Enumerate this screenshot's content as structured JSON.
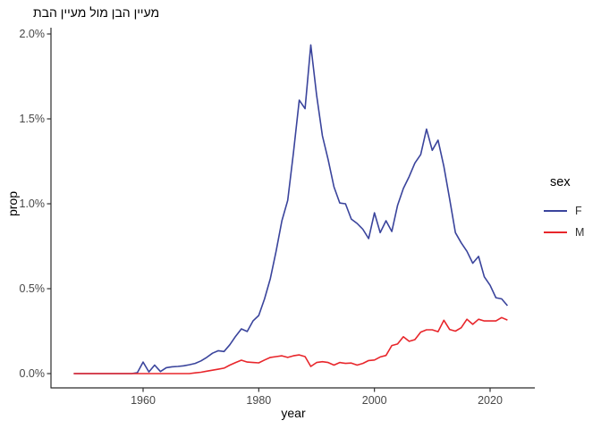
{
  "title": "תבה ןייעמ לומ ןבה ןייעמ",
  "axes": {
    "x_label": "year",
    "y_label": "prop",
    "x_ticks": [
      {
        "label": "1960",
        "value": 1960
      },
      {
        "label": "1980",
        "value": 1980
      },
      {
        "label": "2000",
        "value": 2000
      },
      {
        "label": "2020",
        "value": 2020
      }
    ],
    "y_ticks": [
      {
        "label": "0.0%",
        "value": 0.0
      },
      {
        "label": "0.5%",
        "value": 0.5
      },
      {
        "label": "1.0%",
        "value": 1.0
      },
      {
        "label": "1.5%",
        "value": 1.5
      },
      {
        "label": "2.0%",
        "value": 2.0
      }
    ]
  },
  "legend": {
    "title": "sex",
    "entries": [
      {
        "label": "F",
        "color": "#3A449C"
      },
      {
        "label": "M",
        "color": "#E8262B"
      }
    ]
  },
  "colors": {
    "axis_line": "#2b2b2b",
    "tick_mark": "#333333",
    "series_f": "#3A449C",
    "series_m": "#E8262B"
  },
  "chart_data": {
    "type": "line",
    "title": "תבה ןייעמ לומ ןבה ןייעמ",
    "xlabel": "year",
    "ylabel": "prop",
    "y_unit": "percent",
    "xlim": [
      1944.2,
      2027.5
    ],
    "ylim": [
      0,
      2.0
    ],
    "grid": false,
    "legend_position": "right",
    "x": [
      1948,
      1949,
      1950,
      1951,
      1952,
      1953,
      1954,
      1955,
      1956,
      1957,
      1958,
      1959,
      1960,
      1961,
      1962,
      1963,
      1964,
      1965,
      1966,
      1967,
      1968,
      1969,
      1970,
      1971,
      1972,
      1973,
      1974,
      1975,
      1976,
      1977,
      1978,
      1979,
      1980,
      1981,
      1982,
      1983,
      1984,
      1985,
      1986,
      1987,
      1988,
      1989,
      1990,
      1991,
      1992,
      1993,
      1994,
      1995,
      1996,
      1997,
      1998,
      1999,
      2000,
      2001,
      2002,
      2003,
      2004,
      2005,
      2006,
      2007,
      2008,
      2009,
      2010,
      2011,
      2012,
      2013,
      2014,
      2015,
      2016,
      2017,
      2018,
      2019,
      2020,
      2021,
      2022,
      2023
    ],
    "series": [
      {
        "name": "F",
        "color": "#3A449C",
        "values": [
          0,
          0,
          0,
          0,
          0,
          0,
          0,
          0,
          0,
          0,
          0,
          0.005,
          0.068,
          0.01,
          0.05,
          0.012,
          0.035,
          0.04,
          0.042,
          0.046,
          0.052,
          0.06,
          0.075,
          0.095,
          0.12,
          0.135,
          0.13,
          0.17,
          0.22,
          0.263,
          0.248,
          0.31,
          0.342,
          0.44,
          0.56,
          0.72,
          0.9,
          1.02,
          1.3,
          1.61,
          1.56,
          1.935,
          1.64,
          1.4,
          1.26,
          1.1,
          1.005,
          1.0,
          0.91,
          0.884,
          0.85,
          0.795,
          0.947,
          0.83,
          0.9,
          0.837,
          0.99,
          1.09,
          1.16,
          1.24,
          1.29,
          1.44,
          1.315,
          1.375,
          1.22,
          1.03,
          0.83,
          0.77,
          0.72,
          0.65,
          0.69,
          0.57,
          0.52,
          0.447,
          0.44,
          0.4
        ]
      },
      {
        "name": "M",
        "color": "#E8262B",
        "values": [
          0,
          0,
          0,
          0,
          0,
          0,
          0,
          0,
          0,
          0,
          0,
          0,
          0,
          0,
          0,
          0,
          0,
          0,
          0,
          0,
          0,
          0.004,
          0.008,
          0.014,
          0.02,
          0.026,
          0.032,
          0.05,
          0.065,
          0.079,
          0.068,
          0.065,
          0.063,
          0.08,
          0.095,
          0.1,
          0.105,
          0.095,
          0.105,
          0.11,
          0.1,
          0.042,
          0.065,
          0.07,
          0.065,
          0.05,
          0.065,
          0.06,
          0.062,
          0.05,
          0.06,
          0.077,
          0.08,
          0.098,
          0.107,
          0.165,
          0.174,
          0.217,
          0.19,
          0.2,
          0.244,
          0.258,
          0.258,
          0.247,
          0.314,
          0.26,
          0.25,
          0.27,
          0.32,
          0.29,
          0.32,
          0.31,
          0.31,
          0.31,
          0.33,
          0.315
        ]
      }
    ]
  }
}
